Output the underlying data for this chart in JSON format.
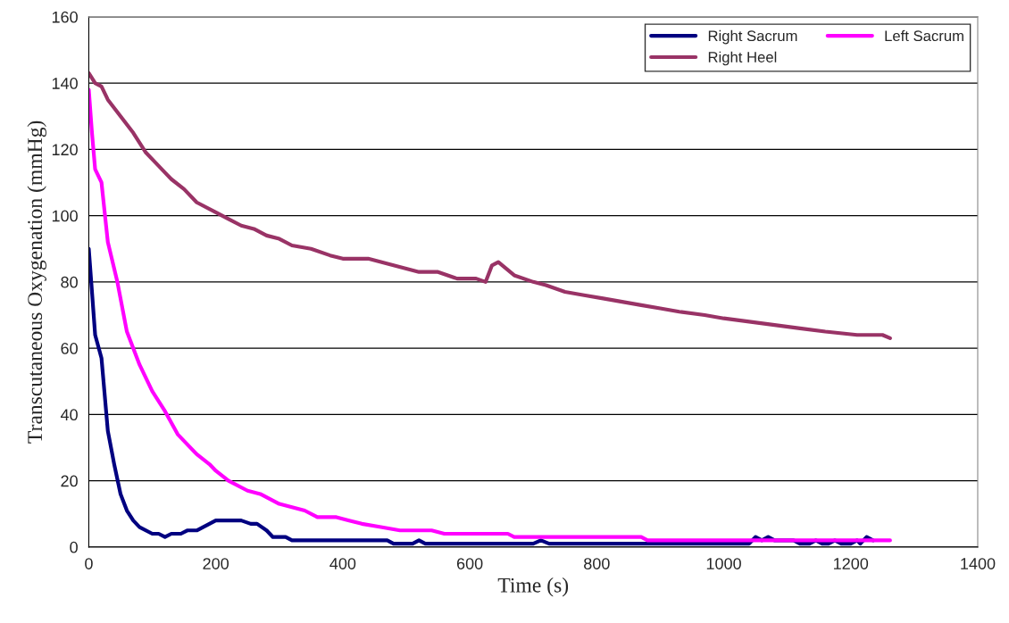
{
  "chart_data": {
    "type": "line",
    "xlabel": "Time (s)",
    "ylabel": "Transcutaneous Oxygenation (mmHg)",
    "xlim": [
      0,
      1400
    ],
    "xticks": [
      0,
      200,
      400,
      600,
      800,
      1000,
      1200,
      1400
    ],
    "ylim": [
      0,
      160
    ],
    "yticks": [
      0,
      20,
      40,
      60,
      80,
      100,
      120,
      140,
      160
    ],
    "grid": "y",
    "legend": "top right",
    "marker": "none",
    "line_style": "solid",
    "series": [
      {
        "name": "Right Sacrum",
        "color": "#000080",
        "x": [
          0,
          10,
          20,
          30,
          40,
          50,
          60,
          70,
          80,
          100,
          110,
          120,
          130,
          145,
          155,
          170,
          190,
          200,
          240,
          255,
          265,
          280,
          290,
          310,
          320,
          470,
          480,
          510,
          520,
          530,
          700,
          712,
          725,
          1040,
          1050,
          1060,
          1070,
          1080,
          1110,
          1120,
          1135,
          1145,
          1155,
          1165,
          1175,
          1185,
          1200,
          1210,
          1215,
          1225,
          1235
        ],
        "values": [
          90,
          64,
          57,
          35,
          25,
          16,
          11,
          8,
          6,
          4,
          4,
          3,
          4,
          4,
          5,
          5,
          7,
          8,
          8,
          7,
          7,
          5,
          3,
          3,
          2,
          2,
          1,
          1,
          2,
          1,
          1,
          2,
          1,
          1,
          3,
          2,
          3,
          2,
          2,
          1,
          1,
          2,
          1,
          1,
          2,
          1,
          1,
          2,
          1,
          3,
          2
        ]
      },
      {
        "name": "Left Sacrum",
        "color": "#ff00ff",
        "x": [
          0,
          5,
          10,
          20,
          30,
          45,
          60,
          80,
          100,
          120,
          140,
          170,
          190,
          200,
          220,
          250,
          270,
          300,
          320,
          340,
          360,
          390,
          410,
          430,
          460,
          490,
          540,
          560,
          660,
          670,
          870,
          880,
          1262
        ],
        "values": [
          138,
          125,
          114,
          110,
          92,
          80,
          65,
          55,
          47,
          41,
          34,
          28,
          25,
          23,
          20,
          17,
          16,
          13,
          12,
          11,
          9,
          9,
          8,
          7,
          6,
          5,
          5,
          4,
          4,
          3,
          3,
          2,
          2
        ]
      },
      {
        "name": "Right Heel",
        "color": "#993366",
        "x": [
          0,
          10,
          20,
          30,
          50,
          70,
          90,
          110,
          120,
          130,
          150,
          170,
          200,
          220,
          240,
          260,
          280,
          300,
          320,
          350,
          380,
          400,
          440,
          460,
          480,
          500,
          520,
          550,
          580,
          610,
          625,
          635,
          645,
          670,
          700,
          720,
          750,
          780,
          810,
          840,
          870,
          900,
          930,
          970,
          1000,
          1040,
          1080,
          1120,
          1160,
          1210,
          1250,
          1262
        ],
        "values": [
          143,
          140,
          139,
          135,
          130,
          125,
          119,
          115,
          113,
          111,
          108,
          104,
          101,
          99,
          97,
          96,
          94,
          93,
          91,
          90,
          88,
          87,
          87,
          86,
          85,
          84,
          83,
          83,
          81,
          81,
          80,
          85,
          86,
          82,
          80,
          79,
          77,
          76,
          75,
          74,
          73,
          72,
          71,
          70,
          69,
          68,
          67,
          66,
          65,
          64,
          64,
          63
        ]
      }
    ]
  }
}
